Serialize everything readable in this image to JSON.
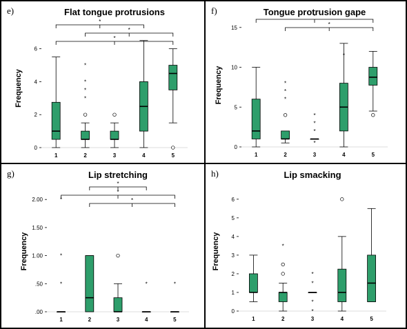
{
  "chart_data": [
    {
      "type": "box",
      "panel_letter": "e)",
      "title": "Flat tongue protrusions",
      "ylabel": "Frequency",
      "xlabel": "",
      "categories": [
        "1",
        "2",
        "3",
        "4",
        "5"
      ],
      "ylim": [
        0,
        7.2
      ],
      "yticks": [
        0,
        2,
        4,
        6
      ],
      "ytick_labels": [
        "0",
        "2",
        "4",
        "6"
      ],
      "boxes": [
        {
          "min": 0,
          "q1": 0.5,
          "median": 1,
          "q3": 2.75,
          "max": 5.5,
          "outliers": [],
          "extremes": []
        },
        {
          "min": 0,
          "q1": 0.5,
          "median": 0.5,
          "q3": 1,
          "max": 1.5,
          "outliers": [
            2
          ],
          "extremes": [
            3,
            3.5,
            4,
            5
          ]
        },
        {
          "min": 0,
          "q1": 0.5,
          "median": 0.5,
          "q3": 1,
          "max": 1.5,
          "outliers": [
            2
          ],
          "extremes": []
        },
        {
          "min": 0,
          "q1": 1,
          "median": 2.5,
          "q3": 4,
          "max": 6.5,
          "outliers": [],
          "extremes": []
        },
        {
          "min": 1.5,
          "q1": 3.5,
          "median": 4.5,
          "q3": 5,
          "max": 6,
          "outliers": [
            0
          ],
          "extremes": []
        }
      ],
      "significance": [
        {
          "from": "1",
          "to": "4",
          "label": "*"
        },
        {
          "from": "2",
          "to": "5",
          "label": "*"
        },
        {
          "from": "1",
          "to": "5",
          "label": "*"
        }
      ]
    },
    {
      "type": "box",
      "panel_letter": "f)",
      "title": "Tongue protrusion gape",
      "ylabel": "Frequency",
      "xlabel": "",
      "categories": [
        "1",
        "2",
        "3",
        "4",
        "5"
      ],
      "ylim": [
        0,
        15.5
      ],
      "yticks": [
        0,
        5,
        10,
        15
      ],
      "ytick_labels": [
        "0",
        "5",
        "10",
        "15"
      ],
      "boxes": [
        {
          "min": 0,
          "q1": 1,
          "median": 2,
          "q3": 6,
          "max": 10,
          "outliers": [],
          "extremes": []
        },
        {
          "min": 0.5,
          "q1": 1,
          "median": 1,
          "q3": 2,
          "max": 2,
          "outliers": [
            4
          ],
          "extremes": [
            6,
            7,
            8
          ]
        },
        {
          "min": 1,
          "q1": 1,
          "median": 1,
          "q3": 1,
          "max": 1,
          "outliers": [],
          "extremes": [
            0.5,
            2,
            3,
            4
          ]
        },
        {
          "min": 0,
          "q1": 2,
          "median": 5,
          "q3": 8,
          "max": 13,
          "outliers": [],
          "extremes": [
            11.5
          ]
        },
        {
          "min": 4.5,
          "q1": 7.75,
          "median": 8.75,
          "q3": 10,
          "max": 12,
          "outliers": [
            4
          ],
          "extremes": []
        }
      ],
      "significance": [
        {
          "from": "1",
          "to": "5",
          "label": "*"
        },
        {
          "from": "2",
          "to": "5",
          "label": "*"
        }
      ]
    },
    {
      "type": "box",
      "panel_letter": "g)",
      "title": "Lip stretching",
      "ylabel": "Frequency",
      "xlabel": "",
      "categories": [
        "1",
        "2",
        "3",
        "4",
        "5"
      ],
      "ylim": [
        0,
        2.15
      ],
      "yticks": [
        0,
        0.5,
        1,
        1.5,
        2
      ],
      "ytick_labels": [
        ".00",
        ".50",
        "1.00",
        "1.50",
        "2.00"
      ],
      "boxes": [
        {
          "min": 0,
          "q1": 0,
          "median": 0,
          "q3": 0,
          "max": 0,
          "outliers": [],
          "extremes": [
            0.5,
            1,
            2
          ]
        },
        {
          "min": 0,
          "q1": 0,
          "median": 0.25,
          "q3": 1,
          "max": 1,
          "outliers": [],
          "extremes": []
        },
        {
          "min": 0,
          "q1": 0,
          "median": 0,
          "q3": 0.25,
          "max": 0.5,
          "outliers": [
            1
          ],
          "extremes": []
        },
        {
          "min": 0,
          "q1": 0,
          "median": 0,
          "q3": 0,
          "max": 0,
          "outliers": [],
          "extremes": [
            0.5
          ]
        },
        {
          "min": 0,
          "q1": 0,
          "median": 0,
          "q3": 0,
          "max": 0,
          "outliers": [],
          "extremes": [
            0.5
          ]
        }
      ],
      "significance": [
        {
          "from": "2",
          "to": "4",
          "label": "*"
        },
        {
          "from": "1",
          "to": "5",
          "label": "*"
        },
        {
          "from": "2",
          "to": "5",
          "label": "*"
        }
      ]
    },
    {
      "type": "box",
      "panel_letter": "h)",
      "title": "Lip smacking",
      "ylabel": "Frequency",
      "xlabel": "",
      "categories": [
        "1",
        "2",
        "3",
        "4",
        "5"
      ],
      "ylim": [
        0,
        6.4
      ],
      "yticks": [
        0,
        1,
        2,
        3,
        4,
        5,
        6
      ],
      "ytick_labels": [
        "0",
        "1",
        "2",
        "3",
        "4",
        "5",
        "6"
      ],
      "boxes": [
        {
          "min": 0.5,
          "q1": 1,
          "median": 1,
          "q3": 2,
          "max": 3,
          "outliers": [],
          "extremes": []
        },
        {
          "min": 0,
          "q1": 0.5,
          "median": 1,
          "q3": 1,
          "max": 1.5,
          "outliers": [
            2,
            2.5
          ],
          "extremes": [
            3.5
          ]
        },
        {
          "min": 1,
          "q1": 1,
          "median": 1,
          "q3": 1,
          "max": 1,
          "outliers": [],
          "extremes": [
            0,
            0.5,
            1.5,
            2
          ]
        },
        {
          "min": 0,
          "q1": 0.5,
          "median": 1,
          "q3": 2.25,
          "max": 4,
          "outliers": [
            6
          ],
          "extremes": []
        },
        {
          "min": 0.5,
          "q1": 0.5,
          "median": 1.5,
          "q3": 3,
          "max": 5.5,
          "outliers": [],
          "extremes": []
        }
      ],
      "significance": []
    }
  ],
  "style": {
    "box_fill": "#2e9e6b",
    "box_stroke": "#000000",
    "ref_line": "#dddddd"
  }
}
